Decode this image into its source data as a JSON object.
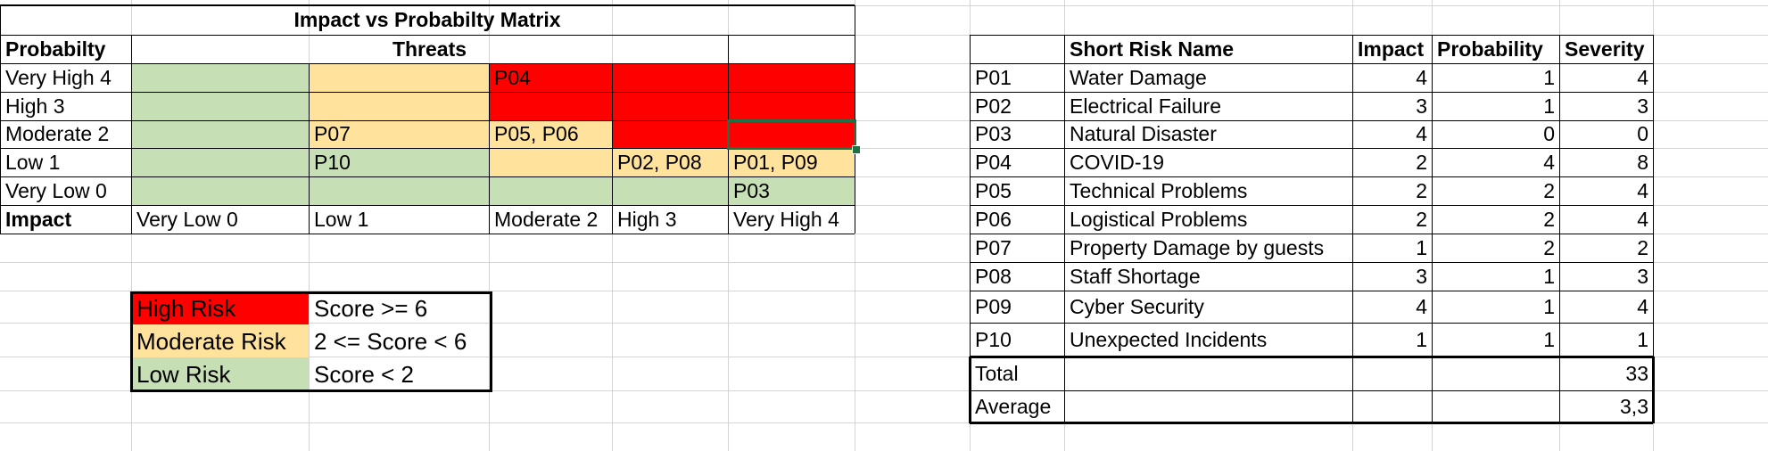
{
  "matrix": {
    "title": "Impact vs Probabilty Matrix",
    "probability_header": "Probabilty",
    "threats_header": "Threats",
    "impact_header": "Impact",
    "rows": [
      {
        "label": "Very High 4",
        "cells": [
          "",
          "",
          "P04",
          "",
          ""
        ],
        "colors": [
          "green",
          "yellow",
          "red",
          "red",
          "red"
        ]
      },
      {
        "label": "High 3",
        "cells": [
          "",
          "",
          "",
          "",
          ""
        ],
        "colors": [
          "green",
          "yellow",
          "red",
          "red",
          "red"
        ]
      },
      {
        "label": "Moderate 2",
        "cells": [
          "",
          "P07",
          "P05, P06",
          "",
          ""
        ],
        "colors": [
          "green",
          "yellow",
          "yellow",
          "red",
          "red"
        ]
      },
      {
        "label": " Low 1",
        "cells": [
          "",
          "P10",
          "",
          "P02, P08",
          "P01, P09"
        ],
        "colors": [
          "green",
          "green",
          "yellow",
          "yellow",
          "yellow"
        ]
      },
      {
        "label": "Very Low 0",
        "cells": [
          "",
          "",
          "",
          "",
          "P03"
        ],
        "colors": [
          "green",
          "green",
          "green",
          "green",
          "green"
        ]
      }
    ],
    "impact_labels": [
      "Very Low 0",
      "Low 1",
      "Moderate 2",
      "High 3",
      "Very High 4"
    ]
  },
  "legend": [
    {
      "label": "High Risk",
      "rule": "Score >= 6",
      "color": "red"
    },
    {
      "label": "Moderate Risk",
      "rule": "2 <= Score < 6",
      "color": "yellow"
    },
    {
      "label": "Low Risk",
      "rule": "Score < 2",
      "color": "green"
    }
  ],
  "risk_table": {
    "headers": [
      "",
      "Short Risk Name",
      "Impact",
      "Probability",
      "Severity"
    ],
    "rows": [
      {
        "id": "P01",
        "name": "Water Damage",
        "impact": "4",
        "probability": "1",
        "severity": "4"
      },
      {
        "id": "P02",
        "name": "Electrical Failure",
        "impact": "3",
        "probability": "1",
        "severity": "3"
      },
      {
        "id": "P03",
        "name": "Natural Disaster",
        "impact": "4",
        "probability": "0",
        "severity": "0"
      },
      {
        "id": "P04",
        "name": "COVID-19",
        "impact": "2",
        "probability": "4",
        "severity": "8"
      },
      {
        "id": "P05",
        "name": "Technical Problems",
        "impact": "2",
        "probability": "2",
        "severity": "4"
      },
      {
        "id": "P06",
        "name": "Logistical Problems",
        "impact": "2",
        "probability": "2",
        "severity": "4"
      },
      {
        "id": "P07",
        "name": "Property Damage by guests",
        "impact": "1",
        "probability": "2",
        "severity": "2"
      },
      {
        "id": "P08",
        "name": "Staff Shortage",
        "impact": "3",
        "probability": "1",
        "severity": "3"
      },
      {
        "id": "P09",
        "name": "Cyber Security",
        "impact": "4",
        "probability": "1",
        "severity": "4"
      },
      {
        "id": "P10",
        "name": "Unexpected Incidents",
        "impact": "1",
        "probability": "1",
        "severity": "1"
      }
    ],
    "total_label": "Total",
    "total_value": "33",
    "average_label": "Average",
    "average_value": "3,3"
  },
  "colors": {
    "red": "#ff0000",
    "yellow": "#ffe29b",
    "green": "#c6dfb4",
    "gridline": "#d4d4d4",
    "selection": "#1e7145"
  }
}
